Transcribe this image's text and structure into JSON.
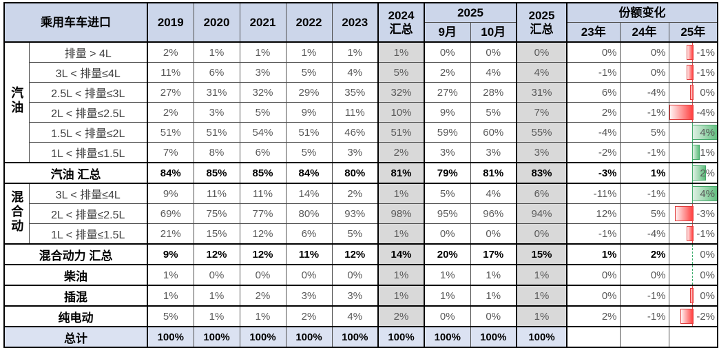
{
  "table": {
    "header": {
      "title": "乘用车车进口",
      "years": [
        "2019",
        "2020",
        "2021",
        "2022",
        "2023"
      ],
      "total2024": {
        "line1": "2024",
        "line2": "汇总"
      },
      "group2025": "2025",
      "months": [
        "9月",
        "10月"
      ],
      "total2025": {
        "line1": "2025",
        "line2": "汇总"
      },
      "share_change": "份额变化",
      "share_years": [
        "23年",
        "24年",
        "25年"
      ]
    },
    "rows": [
      {
        "kind": "item",
        "group": {
          "label": "汽油",
          "rows": 6
        },
        "label": "排量 > 4L",
        "cells": [
          "2%",
          "1%",
          "1%",
          "1%",
          "1%",
          "1%",
          "0%",
          "0%",
          "0%",
          "0%",
          "0%"
        ],
        "bar": {
          "text": "-1%",
          "value": -1,
          "sign": "neg"
        }
      },
      {
        "kind": "item",
        "label": "3L < 排量≤4L",
        "cells": [
          "11%",
          "6%",
          "3%",
          "5%",
          "4%",
          "5%",
          "2%",
          "4%",
          "4%",
          "-1%",
          "0%"
        ],
        "bar": {
          "text": "-1%",
          "value": -1,
          "sign": "neg"
        }
      },
      {
        "kind": "item",
        "label": "2.5L < 排量≤3L",
        "cells": [
          "27%",
          "31%",
          "32%",
          "29%",
          "35%",
          "32%",
          "27%",
          "28%",
          "31%",
          "6%",
          "-4%"
        ],
        "bar": {
          "text": "0%",
          "value": 0,
          "sign": "neg"
        }
      },
      {
        "kind": "item",
        "label": "2L < 排量≤2.5L",
        "cells": [
          "2%",
          "3%",
          "5%",
          "9%",
          "11%",
          "10%",
          "9%",
          "5%",
          "7%",
          "2%",
          "-1%"
        ],
        "bar": {
          "text": "-4%",
          "value": -4,
          "sign": "neg"
        }
      },
      {
        "kind": "item",
        "label": "1.5L < 排量≤2L",
        "cells": [
          "51%",
          "51%",
          "54%",
          "51%",
          "46%",
          "51%",
          "59%",
          "60%",
          "55%",
          "-4%",
          "5%"
        ],
        "bar": {
          "text": "4%",
          "value": 4,
          "sign": "pos"
        }
      },
      {
        "kind": "item",
        "label": "1L < 排量≤1.5L",
        "cells": [
          "7%",
          "8%",
          "6%",
          "5%",
          "3%",
          "2%",
          "3%",
          "3%",
          "3%",
          "-2%",
          "-1%"
        ],
        "bar": {
          "text": "1%",
          "value": 1,
          "sign": "pos"
        }
      },
      {
        "kind": "summary",
        "label": "汽油 汇总",
        "cells": [
          "84%",
          "85%",
          "85%",
          "84%",
          "80%",
          "81%",
          "79%",
          "81%",
          "83%",
          "-3%",
          "1%"
        ],
        "bar": {
          "text": "2%",
          "value": 2,
          "sign": "pos"
        }
      },
      {
        "kind": "item",
        "group": {
          "label": "混合动",
          "rows": 3
        },
        "label": "3L < 排量≤4L",
        "cells": [
          "9%",
          "11%",
          "11%",
          "14%",
          "2%",
          "1%",
          "5%",
          "4%",
          "6%",
          "-11%",
          "-1%"
        ],
        "bar": {
          "text": "4%",
          "value": 4,
          "sign": "pos"
        }
      },
      {
        "kind": "item",
        "label": "2L < 排量≤2.5L",
        "cells": [
          "69%",
          "75%",
          "77%",
          "80%",
          "93%",
          "98%",
          "95%",
          "96%",
          "94%",
          "12%",
          "5%"
        ],
        "bar": {
          "text": "-3%",
          "value": -3,
          "sign": "neg"
        }
      },
      {
        "kind": "item",
        "label": "1L < 排量≤1.5L",
        "cells": [
          "21%",
          "15%",
          "12%",
          "6%",
          "5%",
          "1%",
          "0%",
          "0%",
          "0%",
          "-1%",
          "-4%"
        ],
        "bar": {
          "text": "-1%",
          "value": -1,
          "sign": "neg"
        }
      },
      {
        "kind": "summary",
        "label": "混合动力 汇总",
        "cells": [
          "9%",
          "12%",
          "12%",
          "11%",
          "12%",
          "14%",
          "20%",
          "17%",
          "15%",
          "1%",
          "2%"
        ],
        "bar": {
          "text": "0%",
          "value": 0,
          "sign": "pos"
        }
      },
      {
        "kind": "single",
        "label": "柴油",
        "cells": [
          "1%",
          "0%",
          "0%",
          "0%",
          "0%",
          "1%",
          "1%",
          "1%",
          "1%",
          "0%",
          "0%"
        ],
        "bar": {
          "text": "0%",
          "value": 0,
          "sign": "pos"
        }
      },
      {
        "kind": "single",
        "label": "插混",
        "cells": [
          "1%",
          "1%",
          "2%",
          "3%",
          "3%",
          "1%",
          "1%",
          "1%",
          "1%",
          "0%",
          "-1%"
        ],
        "bar": {
          "text": "0%",
          "value": 0,
          "sign": "neg"
        }
      },
      {
        "kind": "single",
        "label": "纯电动",
        "cells": [
          "5%",
          "1%",
          "1%",
          "2%",
          "4%",
          "2%",
          "0%",
          "0%",
          "1%",
          "2%",
          "-1%"
        ],
        "bar": {
          "text": "-2%",
          "value": -2,
          "sign": "neg"
        }
      },
      {
        "kind": "total",
        "label": "总计",
        "cells": [
          "100%",
          "100%",
          "100%",
          "100%",
          "100%",
          "100%",
          "100%",
          "100%",
          "100%",
          "",
          ""
        ],
        "bar": {
          "text": "",
          "value": null,
          "sign": "none"
        }
      }
    ],
    "bar_scale": {
      "max_abs": 4,
      "axis_pct": 48
    },
    "colors": {
      "header_bg": "#ccd6ea",
      "summary_col_bg": "#d9d9d9",
      "total_row_bg": "#dbe2f2",
      "bar_negative": "#ff4040",
      "bar_positive": "#5fbe7d"
    }
  }
}
